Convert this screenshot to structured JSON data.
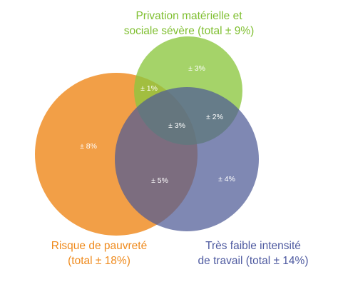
{
  "circles": {
    "privation": {
      "title_line1": "Privation matérielle et",
      "title_line2": "sociale sévère (total ± 9%)",
      "color": "#8cc63f"
    },
    "pauvrete": {
      "title_line1": "Risque de pauvreté",
      "title_line2": "(total ± 18%)",
      "color": "#f0922e"
    },
    "travail": {
      "title_line1": "Très faible intensité",
      "title_line2": "de travail (total ± 14%)",
      "color": "#6f7aa8"
    }
  },
  "regions": {
    "privation_only": "± 3%",
    "pauvrete_privation": "± 1%",
    "all_three": "± 3%",
    "privation_travail": "± 2%",
    "pauvrete_only": "± 8%",
    "pauvrete_travail": "± 5%",
    "travail_only": "± 4%"
  }
}
